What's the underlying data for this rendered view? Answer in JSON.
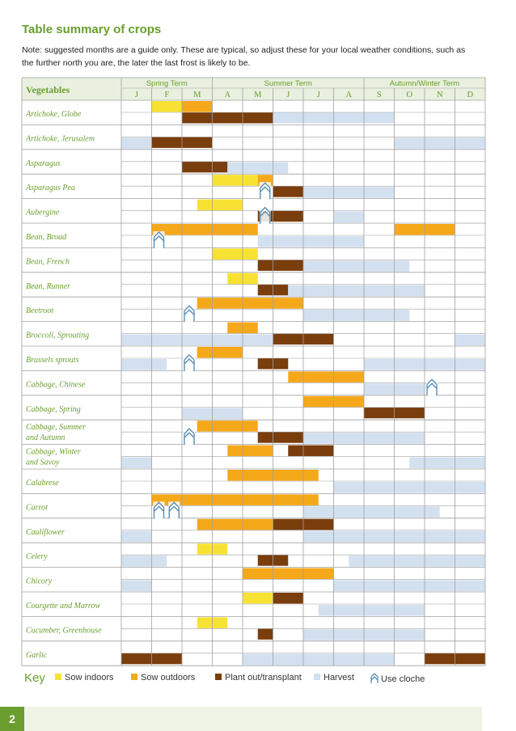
{
  "title": "Table summary of crops",
  "note": "Note: suggested months are a guide only. These are typical, so adjust these for your local weather conditions, such as the further north you are, the later the last frost is likely to be.",
  "header": {
    "vegetables_label": "Vegetables",
    "terms": [
      {
        "label": "Spring Term",
        "start": 0,
        "end": 3
      },
      {
        "label": "Summer Term",
        "start": 3,
        "end": 8
      },
      {
        "label": "Autumn/Winter Term",
        "start": 8,
        "end": 12
      }
    ],
    "months": [
      "J",
      "F",
      "M",
      "A",
      "M",
      "J",
      "J",
      "A",
      "S",
      "O",
      "N",
      "D"
    ]
  },
  "colors": {
    "sow_indoors": "#f7e233",
    "sow_outdoors": "#f5a81a",
    "plant_out": "#7a3d0c",
    "harvest": "#d3e0f0",
    "cloche": "#5a8fb8",
    "accent": "#6a9e2e",
    "grid": "#a0a0a0"
  },
  "key": {
    "label": "Key",
    "items": [
      {
        "label": "Sow indoors",
        "type": "sow_indoors"
      },
      {
        "label": "Sow outdoors",
        "type": "sow_outdoors"
      },
      {
        "label": "Plant out/transplant",
        "type": "plant_out"
      },
      {
        "label": "Harvest",
        "type": "harvest"
      },
      {
        "label": "Use cloche",
        "type": "cloche"
      }
    ]
  },
  "crops": [
    {
      "name": "Artichoke, Globe",
      "top": [
        [
          "sow_indoors",
          1,
          2
        ],
        [
          "sow_outdoors",
          2,
          3
        ]
      ],
      "mid": [
        [
          "plant_out",
          2,
          5
        ],
        [
          "harvest",
          5,
          9
        ]
      ],
      "bottom": [],
      "cloches": []
    },
    {
      "name": "Artichoke, Jerusalem",
      "top": [],
      "mid": [
        [
          "plant_out",
          1,
          3
        ]
      ],
      "bottom": [
        [
          "harvest",
          0,
          1
        ],
        [
          "harvest",
          9,
          12
        ]
      ],
      "cloches": []
    },
    {
      "name": "Asparagus",
      "top": [],
      "mid": [
        [
          "plant_out",
          2,
          3.5
        ]
      ],
      "bottom": [
        [
          "harvest",
          3.5,
          5.5
        ]
      ],
      "cloches": []
    },
    {
      "name": "Asparagus Pea",
      "top": [
        [
          "sow_indoors",
          3,
          4.5
        ],
        [
          "sow_outdoors",
          4.5,
          5
        ]
      ],
      "mid": [
        [
          "plant_out",
          5,
          6
        ]
      ],
      "bottom": [
        [
          "harvest",
          6,
          9
        ]
      ],
      "cloches": [
        4.5
      ]
    },
    {
      "name": "Aubergine",
      "top": [
        [
          "sow_indoors",
          2.5,
          4
        ]
      ],
      "mid": [
        [
          "plant_out",
          4.5,
          6
        ]
      ],
      "bottom": [
        [
          "harvest",
          7,
          8
        ]
      ],
      "cloches": [
        4.5
      ]
    },
    {
      "name": "Bean, Broad",
      "top": [
        [
          "sow_outdoors",
          1,
          4.5
        ],
        [
          "sow_outdoors",
          9,
          11
        ]
      ],
      "mid": [],
      "bottom": [
        [
          "harvest",
          4.5,
          8
        ]
      ],
      "cloches": [
        1
      ]
    },
    {
      "name": "Bean, French",
      "top": [
        [
          "sow_indoors",
          3,
          4.5
        ]
      ],
      "mid": [
        [
          "plant_out",
          4.5,
          6
        ]
      ],
      "bottom": [
        [
          "harvest",
          6,
          9.5
        ]
      ],
      "cloches": []
    },
    {
      "name": "Bean, Runner",
      "top": [
        [
          "sow_indoors",
          3.5,
          4.5
        ]
      ],
      "mid": [
        [
          "plant_out",
          4.5,
          5.5
        ]
      ],
      "bottom": [
        [
          "harvest",
          5.5,
          10
        ]
      ],
      "cloches": []
    },
    {
      "name": "Beetroot",
      "top": [
        [
          "sow_outdoors",
          2.5,
          6
        ]
      ],
      "mid": [],
      "bottom": [
        [
          "harvest",
          6,
          9.5
        ]
      ],
      "cloches": [
        2
      ]
    },
    {
      "name": "Broccoli, Sprouting",
      "top": [
        [
          "sow_outdoors",
          3.5,
          4.5
        ]
      ],
      "mid": [
        [
          "plant_out",
          5,
          7
        ]
      ],
      "bottom": [
        [
          "harvest",
          0,
          5
        ],
        [
          "harvest",
          11,
          12
        ]
      ],
      "cloches": []
    },
    {
      "name": "Brussels sprouts",
      "top": [
        [
          "sow_outdoors",
          2.5,
          4
        ]
      ],
      "mid": [
        [
          "plant_out",
          4.5,
          5.5
        ]
      ],
      "bottom": [
        [
          "harvest",
          0,
          1.5
        ],
        [
          "harvest",
          8,
          12
        ]
      ],
      "cloches": [
        2
      ]
    },
    {
      "name": "Cabbage, Chinese",
      "top": [
        [
          "sow_outdoors",
          5.5,
          8
        ]
      ],
      "mid": [],
      "bottom": [
        [
          "harvest",
          8,
          10
        ]
      ],
      "cloches": [
        10
      ]
    },
    {
      "name": "Cabbage, Spring",
      "top": [
        [
          "sow_outdoors",
          6,
          8
        ]
      ],
      "mid": [
        [
          "plant_out",
          8,
          10
        ]
      ],
      "bottom": [
        [
          "harvest",
          2,
          4
        ]
      ],
      "cloches": []
    },
    {
      "name": "Cabbage, Summer and Autumn",
      "top": [
        [
          "sow_outdoors",
          2.5,
          4.5
        ]
      ],
      "mid": [
        [
          "plant_out",
          4.5,
          6
        ]
      ],
      "bottom": [
        [
          "harvest",
          6,
          10
        ]
      ],
      "cloches": [
        2
      ]
    },
    {
      "name": "Cabbage, Winter and Savoy",
      "top": [
        [
          "sow_outdoors",
          3.5,
          5
        ],
        [
          "plant_out",
          5.5,
          7
        ]
      ],
      "mid": [],
      "bottom": [
        [
          "harvest",
          0,
          1
        ],
        [
          "harvest",
          9.5,
          12
        ]
      ],
      "cloches": []
    },
    {
      "name": "Calabrese",
      "top": [
        [
          "sow_outdoors",
          3.5,
          6.5
        ]
      ],
      "mid": [],
      "bottom": [
        [
          "harvest",
          7,
          12
        ]
      ],
      "cloches": []
    },
    {
      "name": "Carrot",
      "top": [
        [
          "sow_outdoors",
          1,
          6.5
        ]
      ],
      "mid": [],
      "bottom": [
        [
          "harvest",
          6,
          10.5
        ]
      ],
      "cloches": [
        1,
        1.5
      ]
    },
    {
      "name": "Cauliflower",
      "top": [
        [
          "sow_outdoors",
          2.5,
          5
        ],
        [
          "plant_out",
          5,
          7
        ]
      ],
      "mid": [],
      "bottom": [
        [
          "harvest",
          0,
          1
        ],
        [
          "harvest",
          6,
          12
        ]
      ],
      "cloches": []
    },
    {
      "name": "Celery",
      "top": [
        [
          "sow_indoors",
          2.5,
          3.5
        ]
      ],
      "mid": [
        [
          "plant_out",
          4.5,
          5.5
        ]
      ],
      "bottom": [
        [
          "harvest",
          0,
          1.5
        ],
        [
          "harvest",
          7.5,
          12
        ]
      ],
      "cloches": []
    },
    {
      "name": "Chicory",
      "top": [
        [
          "sow_outdoors",
          4,
          7
        ]
      ],
      "mid": [],
      "bottom": [
        [
          "harvest",
          0,
          1
        ],
        [
          "harvest",
          7,
          12
        ]
      ],
      "cloches": []
    },
    {
      "name": "Courgette and Marrow",
      "top": [
        [
          "sow_indoors",
          4,
          5
        ],
        [
          "plant_out",
          5,
          6
        ]
      ],
      "mid": [],
      "bottom": [
        [
          "harvest",
          6.5,
          10
        ]
      ],
      "cloches": []
    },
    {
      "name": "Cucumber, Greenhouse",
      "top": [
        [
          "sow_indoors",
          2.5,
          3.5
        ]
      ],
      "mid": [
        [
          "plant_out",
          4.5,
          5
        ]
      ],
      "bottom": [
        [
          "harvest",
          6,
          10
        ]
      ],
      "cloches": []
    },
    {
      "name": "Garlic",
      "top": [],
      "mid": [
        [
          "plant_out",
          0,
          2
        ],
        [
          "plant_out",
          10,
          12
        ]
      ],
      "bottom": [
        [
          "harvest",
          4,
          9
        ]
      ],
      "cloches": []
    }
  ],
  "page_number": "2"
}
